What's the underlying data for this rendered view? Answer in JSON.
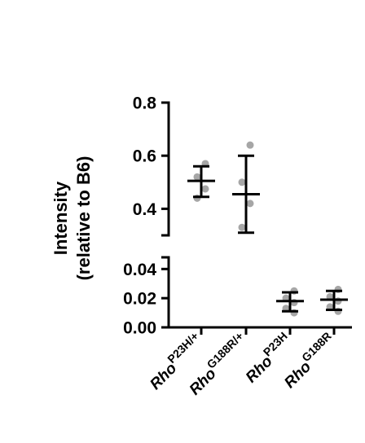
{
  "chart_data": {
    "type": "scatter",
    "ylabel_line1": "Intensity",
    "ylabel_line2": "(relative to B6)",
    "y_axis_broken": true,
    "upper_segment": {
      "ylim": [
        0.3,
        0.8
      ],
      "ticks": [
        0.4,
        0.6,
        0.8
      ],
      "tick_labels": [
        "0.4",
        "0.6",
        "0.8"
      ]
    },
    "lower_segment": {
      "ylim": [
        0.0,
        0.048
      ],
      "ticks": [
        0.0,
        0.02,
        0.04
      ],
      "tick_labels": [
        "0.00",
        "0.02",
        "0.04"
      ]
    },
    "categories": [
      {
        "gene": "Rho",
        "superscript": "P23H/+"
      },
      {
        "gene": "Rho",
        "superscript": "G188R/+"
      },
      {
        "gene": "Rho",
        "superscript": "P23H"
      },
      {
        "gene": "Rho",
        "superscript": "G188R"
      }
    ],
    "groups": [
      {
        "segment": "upper",
        "mean": 0.505,
        "sd_low": 0.445,
        "sd_high": 0.56,
        "points": [
          0.57,
          0.52,
          0.475,
          0.44
        ]
      },
      {
        "segment": "upper",
        "mean": 0.455,
        "sd_low": 0.31,
        "sd_high": 0.6,
        "points": [
          0.64,
          0.5,
          0.42,
          0.33
        ]
      },
      {
        "segment": "lower",
        "mean": 0.018,
        "sd_low": 0.011,
        "sd_high": 0.024,
        "points": [
          0.025,
          0.02,
          0.017,
          0.013,
          0.01
        ]
      },
      {
        "segment": "lower",
        "mean": 0.019,
        "sd_low": 0.012,
        "sd_high": 0.025,
        "points": [
          0.026,
          0.021,
          0.018,
          0.014,
          0.011
        ]
      }
    ],
    "point_color": "#a6a6a6",
    "bar_color": "#000000"
  }
}
